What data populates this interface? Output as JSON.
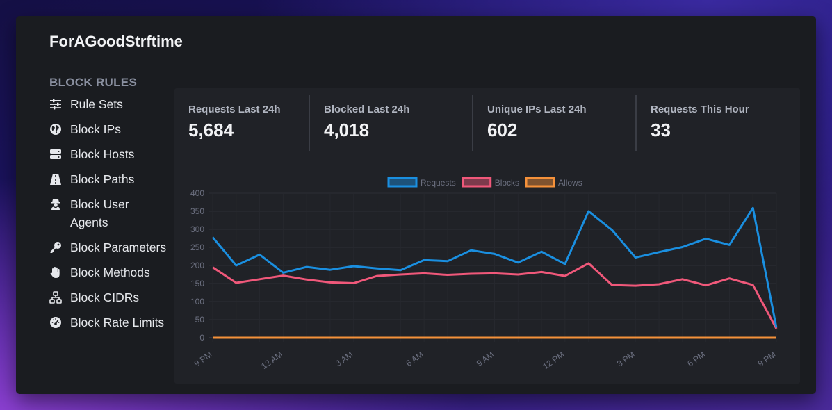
{
  "brand": "ForAGoodStrftime",
  "sidebar": {
    "section_title": "BLOCK RULES",
    "items": [
      {
        "label": "Rule Sets",
        "icon": "sliders-icon"
      },
      {
        "label": "Block IPs",
        "icon": "globe-icon"
      },
      {
        "label": "Block Hosts",
        "icon": "server-icon"
      },
      {
        "label": "Block Paths",
        "icon": "road-icon"
      },
      {
        "label": "Block User Agents",
        "icon": "user-secret-icon"
      },
      {
        "label": "Block Parameters",
        "icon": "key-icon"
      },
      {
        "label": "Block Methods",
        "icon": "hand-icon"
      },
      {
        "label": "Block CIDRs",
        "icon": "network-icon"
      },
      {
        "label": "Block Rate Limits",
        "icon": "gauge-icon"
      }
    ]
  },
  "stats": [
    {
      "label": "Requests Last 24h",
      "value": "5,684"
    },
    {
      "label": "Blocked Last 24h",
      "value": "4,018"
    },
    {
      "label": "Unique IPs Last 24h",
      "value": "602"
    },
    {
      "label": "Requests This Hour",
      "value": "33"
    }
  ],
  "chart_data": {
    "type": "line",
    "title": "",
    "xlabel": "",
    "ylabel": "",
    "ylim": [
      0,
      400
    ],
    "yticks": [
      0,
      50,
      100,
      150,
      200,
      250,
      300,
      350,
      400
    ],
    "x_tick_labels": [
      "9 PM",
      "12 AM",
      "3 AM",
      "6 AM",
      "9 AM",
      "12 PM",
      "3 PM",
      "6 PM",
      "9 PM"
    ],
    "x_tick_indices": [
      0,
      3,
      6,
      9,
      12,
      15,
      18,
      21,
      24
    ],
    "legend_position": "top-center",
    "series": [
      {
        "name": "Requests",
        "color": "#1a8fe0",
        "values": [
          278,
          200,
          230,
          180,
          196,
          188,
          198,
          192,
          187,
          215,
          212,
          242,
          232,
          208,
          238,
          204,
          350,
          298,
          222,
          237,
          251,
          274,
          257,
          359,
          28
        ]
      },
      {
        "name": "Blocks",
        "color": "#f0587a",
        "values": [
          195,
          152,
          162,
          172,
          161,
          153,
          151,
          171,
          175,
          178,
          174,
          177,
          178,
          175,
          182,
          171,
          206,
          146,
          144,
          148,
          162,
          145,
          164,
          146,
          25
        ]
      },
      {
        "name": "Allows",
        "color": "#f5913a",
        "values": [
          0,
          0,
          0,
          0,
          0,
          0,
          0,
          0,
          0,
          0,
          0,
          0,
          0,
          0,
          0,
          0,
          0,
          0,
          0,
          0,
          0,
          0,
          0,
          0,
          0
        ]
      }
    ]
  }
}
